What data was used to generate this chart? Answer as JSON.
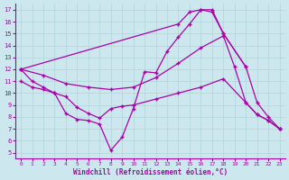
{
  "background_color": "#cce8ee",
  "line_color": "#aa00aa",
  "grid_color": "#aacccc",
  "xlabel": "Windchill (Refroidissement éolien,°C)",
  "xlim": [
    -0.5,
    23.5
  ],
  "ylim": [
    4.5,
    17.5
  ],
  "yticks": [
    5,
    6,
    7,
    8,
    9,
    10,
    11,
    12,
    13,
    14,
    15,
    16,
    17
  ],
  "xticks": [
    0,
    1,
    2,
    3,
    4,
    5,
    6,
    7,
    8,
    9,
    10,
    11,
    12,
    13,
    14,
    15,
    16,
    17,
    18,
    19,
    20,
    21,
    22,
    23
  ],
  "series": [
    {
      "x": [
        0,
        1,
        2,
        3,
        4,
        5,
        6,
        7,
        8,
        9,
        10,
        11,
        12,
        13,
        14,
        15,
        16,
        17,
        18,
        20,
        21,
        22,
        23
      ],
      "y": [
        12,
        11,
        10.5,
        10.0,
        8.3,
        7.8,
        7.7,
        7.4,
        5.2,
        6.3,
        8.7,
        11.8,
        11.7,
        13.5,
        14.7,
        15.8,
        17.0,
        17.0,
        15.0,
        12.2,
        9.2,
        8.0,
        7.0
      ]
    },
    {
      "x": [
        0,
        14,
        15,
        16,
        17,
        18,
        20
      ],
      "y": [
        12,
        15.8,
        16.8,
        17.0,
        16.8,
        15.0,
        12.2
      ]
    },
    {
      "x": [
        0,
        2,
        4,
        6,
        8,
        10,
        12,
        14,
        16,
        18,
        19,
        20,
        21,
        22,
        23
      ],
      "y": [
        12,
        11.5,
        10.8,
        10.5,
        10.3,
        10.5,
        11.3,
        12.5,
        13.8,
        14.8,
        12.2,
        9.2,
        8.2,
        7.7,
        7.0
      ]
    },
    {
      "x": [
        0,
        1,
        2,
        3,
        4,
        5,
        6,
        7,
        8,
        9,
        10,
        12,
        14,
        16,
        18,
        20,
        21,
        22,
        23
      ],
      "y": [
        11,
        10.5,
        10.3,
        10.0,
        9.7,
        8.8,
        8.3,
        7.9,
        8.7,
        8.9,
        9.0,
        9.5,
        10.0,
        10.5,
        11.2,
        9.2,
        8.2,
        7.7,
        7.0
      ]
    }
  ]
}
